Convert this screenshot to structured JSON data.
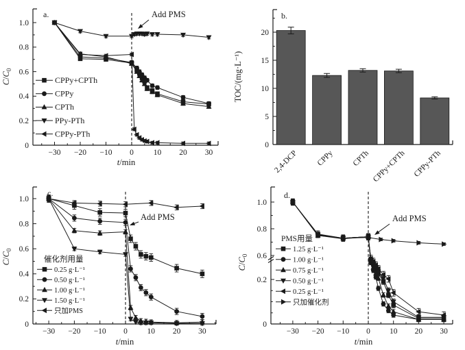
{
  "figure": {
    "background": "#ffffff",
    "ink": "#1a1a1a",
    "bar_color": "#575757"
  },
  "chart_data": [
    {
      "id": "a",
      "type": "line",
      "panel_label": "a.",
      "xlabel_parts": [
        {
          "t": "t",
          "i": true
        },
        {
          "t": "/min"
        }
      ],
      "ylabel_parts": [
        {
          "t": "C",
          "i": true
        },
        {
          "t": "/"
        },
        {
          "t": "C",
          "i": true
        },
        {
          "t": "0",
          "sub": true
        }
      ],
      "xticks": [
        -30,
        -20,
        -10,
        0,
        10,
        20,
        30
      ],
      "yticks": [
        0,
        0.2,
        0.4,
        0.6,
        0.8,
        1.0
      ],
      "xlim": [
        -38.4,
        33.6
      ],
      "ylim": [
        0,
        1.11
      ],
      "vline_x": 0,
      "grid": false,
      "legend_position": "left-middle",
      "annotation": {
        "label": "Add PMS"
      },
      "series": [
        {
          "name": "CPPy+CPTh",
          "marker": "square",
          "err": 0.015,
          "points": [
            [
              -30,
              1.0
            ],
            [
              -20,
              0.705
            ],
            [
              -10,
              0.7
            ],
            [
              0,
              0.67
            ],
            [
              2,
              0.615
            ],
            [
              3,
              0.585
            ],
            [
              4,
              0.55
            ],
            [
              5,
              0.52
            ],
            [
              6,
              0.47
            ],
            [
              8,
              0.445
            ],
            [
              10,
              0.42
            ],
            [
              20,
              0.355
            ],
            [
              30,
              0.335
            ]
          ]
        },
        {
          "name": "CPPy",
          "marker": "circle",
          "err": 0.015,
          "points": [
            [
              -30,
              1.0
            ],
            [
              -20,
              0.72
            ],
            [
              -10,
              0.71
            ],
            [
              0,
              0.675
            ],
            [
              2,
              0.63
            ],
            [
              3,
              0.6
            ],
            [
              4,
              0.575
            ],
            [
              5,
              0.55
            ],
            [
              6,
              0.53
            ],
            [
              8,
              0.485
            ],
            [
              10,
              0.47
            ],
            [
              20,
              0.39
            ],
            [
              30,
              0.34
            ]
          ]
        },
        {
          "name": "CPTh",
          "marker": "triangle-up",
          "err": 0.015,
          "points": [
            [
              -30,
              1.0
            ],
            [
              -20,
              0.745
            ],
            [
              -10,
              0.72
            ],
            [
              0,
              0.665
            ],
            [
              2,
              0.6
            ],
            [
              3,
              0.565
            ],
            [
              4,
              0.53
            ],
            [
              5,
              0.5
            ],
            [
              6,
              0.46
            ],
            [
              8,
              0.435
            ],
            [
              10,
              0.41
            ],
            [
              20,
              0.34
            ],
            [
              30,
              0.315
            ]
          ]
        },
        {
          "name": "PPy-PTh",
          "marker": "triangle-down",
          "err": 0.013,
          "points": [
            [
              -30,
              1.0
            ],
            [
              -20,
              0.93
            ],
            [
              -10,
              0.89
            ],
            [
              0,
              0.89
            ],
            [
              1,
              0.905
            ],
            [
              2,
              0.91
            ],
            [
              3,
              0.91
            ],
            [
              4,
              0.91
            ],
            [
              5,
              0.905
            ],
            [
              6,
              0.91
            ],
            [
              8,
              0.905
            ],
            [
              10,
              0.905
            ],
            [
              20,
              0.9
            ],
            [
              30,
              0.88
            ]
          ]
        },
        {
          "name": "CPPy-PTh",
          "marker": "triangle-left",
          "err": 0.012,
          "points": [
            [
              -30,
              1.0
            ],
            [
              -20,
              0.74
            ],
            [
              -10,
              0.73
            ],
            [
              0,
              0.74
            ],
            [
              1,
              0.13
            ],
            [
              2,
              0.085
            ],
            [
              3,
              0.06
            ],
            [
              4,
              0.045
            ],
            [
              5,
              0.035
            ],
            [
              6,
              0.03
            ],
            [
              8,
              0.02
            ],
            [
              10,
              0.02
            ],
            [
              20,
              0.015
            ],
            [
              30,
              0.015
            ]
          ]
        }
      ]
    },
    {
      "id": "b",
      "type": "bar",
      "panel_label": "b.",
      "ylabel_parts": [
        {
          "t": "TOC/(mg·L⁻¹)"
        }
      ],
      "categories": [
        "2,4-DCP",
        "CPPy",
        "CPTh",
        "CPPy+CPTh",
        "CPPy-PTh"
      ],
      "values": [
        20.3,
        12.3,
        13.2,
        13.1,
        8.3
      ],
      "errors": [
        0.6,
        0.35,
        0.3,
        0.3,
        0.2
      ],
      "yticks": [
        0,
        5,
        10,
        15,
        20
      ],
      "ylim": [
        0,
        24
      ],
      "grid": false
    },
    {
      "id": "c",
      "type": "line",
      "panel_label": "c.",
      "xlabel_parts": [
        {
          "t": "t",
          "i": true
        },
        {
          "t": "/min"
        }
      ],
      "ylabel_parts": [
        {
          "t": "C",
          "i": true
        },
        {
          "t": "/"
        },
        {
          "t": "C",
          "i": true
        },
        {
          "t": "0",
          "sub": true
        }
      ],
      "xticks": [
        -30,
        -20,
        -10,
        0,
        10,
        20,
        30
      ],
      "yticks": [
        0,
        0.2,
        0.4,
        0.6,
        0.8,
        1.0
      ],
      "xlim": [
        -36.2,
        35.4
      ],
      "ylim": [
        0,
        1.09
      ],
      "vline_x": 0,
      "grid": false,
      "legend_title": "催化剂用量",
      "annotation": {
        "label": "Add PMS"
      },
      "series": [
        {
          "name": "0.25 g·L⁻¹",
          "marker": "square",
          "err": 0.03,
          "points": [
            [
              -30,
              1.0
            ],
            [
              -20,
              0.945
            ],
            [
              -10,
              0.89
            ],
            [
              0,
              0.885
            ],
            [
              2,
              0.68
            ],
            [
              4,
              0.62
            ],
            [
              6,
              0.555
            ],
            [
              8,
              0.54
            ],
            [
              10,
              0.53
            ],
            [
              20,
              0.445
            ],
            [
              30,
              0.4
            ]
          ]
        },
        {
          "name": "0.50 g·L⁻¹",
          "marker": "circle",
          "err": 0.025,
          "points": [
            [
              -30,
              1.0
            ],
            [
              -20,
              0.845
            ],
            [
              -10,
              0.82
            ],
            [
              0,
              0.81
            ],
            [
              2,
              0.44
            ],
            [
              4,
              0.37
            ],
            [
              6,
              0.29
            ],
            [
              8,
              0.25
            ],
            [
              10,
              0.215
            ],
            [
              20,
              0.1
            ],
            [
              30,
              0.06
            ]
          ]
        },
        {
          "name": "1.00 g·L⁻¹",
          "marker": "triangle-up",
          "err": 0.018,
          "points": [
            [
              -30,
              1.0
            ],
            [
              -20,
              0.745
            ],
            [
              -10,
              0.725
            ],
            [
              0,
              0.735
            ],
            [
              2,
              0.13
            ],
            [
              4,
              0.05
            ],
            [
              6,
              0.025
            ],
            [
              8,
              0.02
            ],
            [
              10,
              0.015
            ],
            [
              20,
              0.01
            ],
            [
              30,
              0.015
            ]
          ]
        },
        {
          "name": "1.50 g·L⁻¹",
          "marker": "triangle-down",
          "err": 0.015,
          "points": [
            [
              -30,
              1.0
            ],
            [
              -20,
              0.6
            ],
            [
              -10,
              0.575
            ],
            [
              0,
              0.555
            ],
            [
              2,
              0.04
            ],
            [
              4,
              0.015
            ],
            [
              6,
              0.01
            ],
            [
              8,
              0.01
            ],
            [
              10,
              0.01
            ],
            [
              20,
              0.005
            ],
            [
              30,
              0.005
            ]
          ]
        },
        {
          "name": "只加PMS",
          "marker": "triangle-left",
          "err": 0.02,
          "points": [
            [
              -30,
              1.0
            ],
            [
              -20,
              0.965
            ],
            [
              -10,
              0.96
            ],
            [
              0,
              0.955
            ],
            [
              10,
              0.965
            ],
            [
              20,
              0.93
            ],
            [
              30,
              0.94
            ]
          ]
        }
      ]
    },
    {
      "id": "d",
      "type": "line",
      "panel_label": "d.",
      "xlabel_parts": [
        {
          "t": "t",
          "i": true
        },
        {
          "t": "/min"
        }
      ],
      "ylabel_parts": [
        {
          "t": "C",
          "i": true
        },
        {
          "t": "/"
        },
        {
          "t": "C",
          "i": true
        },
        {
          "t": "0",
          "sub": true
        }
      ],
      "xticks": [
        -30,
        -20,
        -10,
        0,
        10,
        20,
        30
      ],
      "yticks": [
        0,
        0.2,
        0.6,
        0.8,
        1.0
      ],
      "xlim": [
        -38.7,
        33.5
      ],
      "ylim": [
        0,
        1.11
      ],
      "y_axis_break": true,
      "break_range": [
        0.25,
        0.55
      ],
      "vline_x": 0,
      "grid": false,
      "legend_title": "PMS用量",
      "annotation": {
        "label": "Add PMS"
      },
      "series": [
        {
          "name": "1.25 g·L⁻¹",
          "marker": "square",
          "err": 0.025,
          "points": [
            [
              -30,
              1.0
            ],
            [
              -20,
              0.755
            ],
            [
              -10,
              0.73
            ],
            [
              0,
              0.74
            ],
            [
              1,
              0.52
            ],
            [
              2,
              0.45
            ],
            [
              3,
              0.37
            ],
            [
              4,
              0.3
            ],
            [
              6,
              0.19
            ],
            [
              8,
              0.13
            ],
            [
              10,
              0.085
            ],
            [
              20,
              0.025
            ],
            [
              30,
              0.025
            ]
          ]
        },
        {
          "name": "1.00 g·L⁻¹",
          "marker": "circle",
          "err": 0.02,
          "points": [
            [
              -30,
              1.0
            ],
            [
              -20,
              0.75
            ],
            [
              -10,
              0.725
            ],
            [
              0,
              0.74
            ],
            [
              1,
              0.48
            ],
            [
              2,
              0.35
            ],
            [
              3,
              0.24
            ],
            [
              4,
              0.16
            ],
            [
              6,
              0.09
            ],
            [
              8,
              0.06
            ],
            [
              10,
              0.04
            ],
            [
              20,
              0.02
            ],
            [
              30,
              0.02
            ]
          ]
        },
        {
          "name": "0.75 g·L⁻¹",
          "marker": "triangle-up",
          "err": 0.02,
          "points": [
            [
              -30,
              1.0
            ],
            [
              -20,
              0.75
            ],
            [
              -10,
              0.73
            ],
            [
              0,
              0.74
            ],
            [
              1,
              0.5
            ],
            [
              2,
              0.4
            ],
            [
              3,
              0.3
            ],
            [
              4,
              0.22
            ],
            [
              6,
              0.13
            ],
            [
              8,
              0.08
            ],
            [
              10,
              0.055
            ],
            [
              20,
              0.02
            ],
            [
              30,
              0.02
            ]
          ]
        },
        {
          "name": "0.50 g·L⁻¹",
          "marker": "triangle-down",
          "err": 0.025,
          "points": [
            [
              -30,
              1.0
            ],
            [
              -20,
              0.755
            ],
            [
              -10,
              0.73
            ],
            [
              0,
              0.74
            ],
            [
              1,
              0.53
            ],
            [
              2,
              0.47
            ],
            [
              3,
              0.4
            ],
            [
              4,
              0.33
            ],
            [
              6,
              0.22
            ],
            [
              8,
              0.15
            ],
            [
              10,
              0.1
            ],
            [
              20,
              0.03
            ],
            [
              30,
              0.03
            ]
          ]
        },
        {
          "name": "0.25 g·L⁻¹",
          "marker": "triangle-left",
          "err": 0.03,
          "points": [
            [
              -30,
              1.0
            ],
            [
              -20,
              0.76
            ],
            [
              -10,
              0.73
            ],
            [
              0,
              0.74
            ],
            [
              1,
              0.55
            ],
            [
              2,
              0.5
            ],
            [
              3,
              0.44
            ],
            [
              4,
              0.38
            ],
            [
              6,
              0.28
            ],
            [
              8,
              0.21
            ],
            [
              10,
              0.14
            ],
            [
              20,
              0.055
            ],
            [
              30,
              0.04
            ]
          ]
        },
        {
          "name": "只加催化剂",
          "marker": "triangle-right",
          "err": 0.012,
          "points": [
            [
              -30,
              1.0
            ],
            [
              -20,
              0.75
            ],
            [
              -10,
              0.73
            ],
            [
              0,
              0.735
            ],
            [
              5,
              0.72
            ],
            [
              10,
              0.71
            ],
            [
              20,
              0.695
            ],
            [
              30,
              0.685
            ]
          ]
        }
      ]
    }
  ]
}
